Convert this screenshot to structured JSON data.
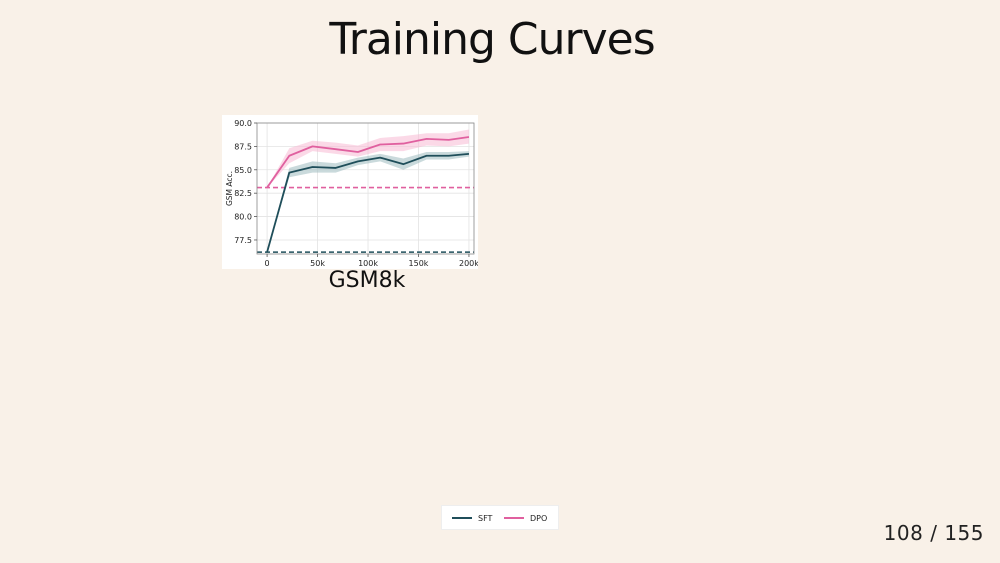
{
  "slide": {
    "title": "Training Curves",
    "page_current": "108",
    "page_separator": "/",
    "page_total": "155"
  },
  "chart_caption": "GSM8k",
  "colors": {
    "background": "#f9f1e8",
    "sft": "#1f4e5a",
    "dpo": "#e0609f",
    "sft_band": "#9fbcbf",
    "dpo_band": "#f7b9d3"
  },
  "legend": [
    {
      "label": "SFT",
      "series": "sft"
    },
    {
      "label": "DPO",
      "series": "dpo"
    }
  ],
  "chart_data": {
    "type": "line",
    "ylabel": "GSM Acc.",
    "xlabel": "",
    "xlim": [
      -10000,
      205000
    ],
    "ylim": [
      76.0,
      90.0
    ],
    "x_ticks": [
      0,
      50000,
      100000,
      150000,
      200000
    ],
    "x_tick_labels": [
      "0",
      "50k",
      "100k",
      "150k",
      "200k"
    ],
    "y_ticks": [
      77.5,
      80.0,
      82.5,
      85.0,
      87.5,
      90.0
    ],
    "y_tick_labels": [
      "77.5",
      "80.0",
      "82.5",
      "85.0",
      "87.5",
      "90.0"
    ],
    "grid": true,
    "legend_position": "below",
    "series": [
      {
        "name": "SFT",
        "key": "sft",
        "x": [
          0,
          22000,
          45000,
          68000,
          90000,
          112000,
          135000,
          158000,
          180000,
          200000
        ],
        "y": [
          76.2,
          84.7,
          85.3,
          85.2,
          85.9,
          86.3,
          85.6,
          86.5,
          86.5,
          86.7
        ],
        "lower": [
          76.2,
          84.2,
          84.7,
          84.7,
          85.5,
          85.9,
          85.0,
          86.1,
          86.1,
          86.4
        ],
        "upper": [
          76.2,
          85.2,
          85.9,
          85.7,
          86.3,
          86.7,
          86.2,
          86.9,
          86.9,
          87.0
        ]
      },
      {
        "name": "DPO",
        "key": "dpo",
        "x": [
          0,
          22000,
          45000,
          68000,
          90000,
          112000,
          135000,
          158000,
          180000,
          200000
        ],
        "y": [
          83.1,
          86.5,
          87.5,
          87.2,
          86.9,
          87.7,
          87.8,
          88.3,
          88.2,
          88.5
        ],
        "lower": [
          83.1,
          85.7,
          87.0,
          86.7,
          86.4,
          87.0,
          87.0,
          87.6,
          87.5,
          87.8
        ],
        "upper": [
          83.1,
          87.3,
          88.1,
          87.9,
          87.6,
          88.4,
          88.6,
          88.9,
          88.9,
          89.3
        ]
      }
    ],
    "reference_lines": [
      {
        "series": "sft",
        "y": 76.2,
        "style": "dashed"
      },
      {
        "series": "dpo",
        "y": 83.1,
        "style": "dashed"
      }
    ]
  }
}
